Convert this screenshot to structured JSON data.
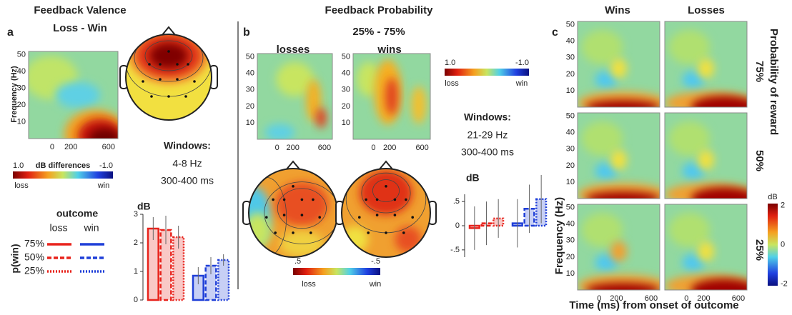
{
  "panel_a": {
    "letter": "a",
    "title": "Feedback Valence",
    "subtitle": "Loss - Win",
    "heatmap": {
      "y_label": "Frequency (Hz)",
      "yticks": [
        50,
        40,
        30,
        20,
        10
      ],
      "xticks": [
        0,
        200,
        600
      ]
    },
    "colorbar": {
      "max_label": "1.0",
      "title": "dB differences",
      "min_label": "-1.0",
      "low": "loss",
      "high": "win"
    },
    "windows": {
      "title": "Windows:",
      "freq": "4-8 Hz",
      "time": "300-400 ms"
    }
  },
  "panel_b": {
    "letter": "b",
    "title": "Feedback Probability",
    "subtitle": "25% - 75%",
    "columns": [
      "losses",
      "wins"
    ],
    "heatmap": {
      "yticks": [
        50,
        40,
        30,
        20,
        10
      ],
      "xticks": [
        0,
        200,
        600
      ]
    },
    "colorbar": {
      "max_label": "1.0",
      "min_label": "-1.0",
      "low": "loss",
      "high": "win"
    },
    "windows": {
      "title": "Windows:",
      "freq": "21-29 Hz",
      "time": "300-400 ms"
    },
    "topo_colorbar": {
      "max_label": ".5",
      "min_label": "-.5",
      "low": "loss",
      "high": "win"
    }
  },
  "panel_c": {
    "letter": "c",
    "columns": [
      "Wins",
      "Losses"
    ],
    "rows": [
      "75%",
      "50%",
      "25%"
    ],
    "side_title": "Probability of reward",
    "y_label": "Frequency (Hz)",
    "x_label": "Time (ms) from onset of outcome",
    "yticks": [
      50,
      40,
      30,
      20,
      10
    ],
    "xticks": [
      0,
      200,
      600
    ],
    "colorbar": {
      "title": "dB",
      "ticks": [
        2,
        0,
        -2
      ]
    }
  },
  "chart_data": [
    {
      "type": "bar",
      "y_label": "dB",
      "legend_title": "outcome",
      "legend_row_title": "p(win)",
      "categories": [
        "loss",
        "win"
      ],
      "colors": [
        "#e8231c",
        "#1f3fd8"
      ],
      "ylim": [
        0,
        3
      ],
      "yticks": [
        0,
        1,
        2,
        3
      ],
      "series": [
        {
          "name": "75%",
          "line_style": "solid",
          "values": [
            2.5,
            0.85
          ],
          "errors": [
            0.4,
            0.3
          ]
        },
        {
          "name": "50%",
          "line_style": "dashed",
          "values": [
            2.45,
            1.2
          ],
          "errors": [
            0.5,
            0.3
          ]
        },
        {
          "name": "25%",
          "line_style": "dotted",
          "values": [
            2.2,
            1.4
          ],
          "errors": [
            0.4,
            0.2
          ]
        }
      ]
    },
    {
      "type": "bar",
      "y_label": "dB",
      "colors": [
        "#e8231c",
        "#1f3fd8"
      ],
      "ylim": [
        -0.65,
        0.65
      ],
      "yticks": [
        {
          "value": 0.5,
          "label": ".5"
        },
        0,
        {
          "value": -0.5,
          "label": "-.5"
        }
      ],
      "series": [
        {
          "line_style": "solid",
          "values": [
            -0.05,
            0.05
          ],
          "errors": [
            0.45,
            0.5
          ]
        },
        {
          "line_style": "dashed",
          "values": [
            0.05,
            0.35
          ],
          "errors": [
            0.45,
            0.5
          ]
        },
        {
          "line_style": "dotted",
          "values": [
            0.15,
            0.55
          ],
          "errors": [
            0.4,
            0.5
          ]
        }
      ]
    }
  ]
}
